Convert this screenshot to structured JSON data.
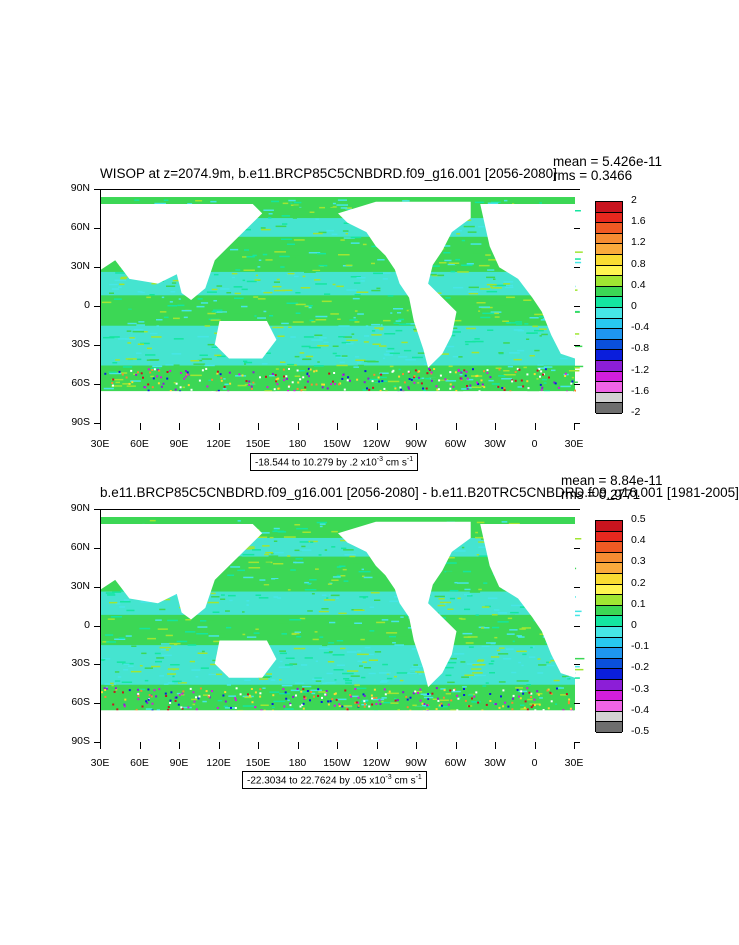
{
  "panels": [
    {
      "title": "WISOP at z=2074.9m, b.e11.BRCP85C5CNBDRD.f09_g16.001 [2056-2080]",
      "mean": "mean = 5.426e-11",
      "rms": "rms = 0.3466",
      "range_prefix": "-18.544 to 10.279 by .2 x10",
      "range_exp": "-3",
      "range_unit": " cm s",
      "range_unit_exp": "-1",
      "colorbar_labels": [
        "2",
        "1.6",
        "1.2",
        "0.8",
        "0.4",
        "0",
        "-0.4",
        "-0.8",
        "-1.2",
        "-1.6",
        "-2"
      ]
    },
    {
      "title": "b.e11.BRCP85C5CNBDRD.f09_g16.001 [2056-2080] - b.e11.B20TRC5CNBDRD.f09_g16.001 [1981-2005]",
      "mean": "mean = 8.84e-11",
      "rms": "rms = 0.2771",
      "range_prefix": "-22.3034 to 22.7624 by .05 x10",
      "range_exp": "-3",
      "range_unit": " cm s",
      "range_unit_exp": "-1",
      "colorbar_labels": [
        "0.5",
        "0.4",
        "0.3",
        "0.2",
        "0.1",
        "0",
        "-0.1",
        "-0.2",
        "-0.3",
        "-0.4",
        "-0.5"
      ]
    }
  ],
  "lat_labels": [
    "90N",
    "60N",
    "30N",
    "0",
    "30S",
    "60S",
    "90S"
  ],
  "lon_labels": [
    "30E",
    "60E",
    "90E",
    "120E",
    "150E",
    "180",
    "150W",
    "120W",
    "90W",
    "60W",
    "30W",
    "0",
    "30E"
  ],
  "colorbar_colors": [
    "#c8141e",
    "#e8281e",
    "#f05a23",
    "#f58c32",
    "#faaa3c",
    "#fadc32",
    "#fff550",
    "#a0e632",
    "#3cd755",
    "#14e6a0",
    "#46e6e6",
    "#28c8f0",
    "#1e96f0",
    "#0a50dc",
    "#0a1edc",
    "#8c1ed7",
    "#d21edc",
    "#f064e6",
    "#d2d2d2",
    "#6e6e6e"
  ]
}
